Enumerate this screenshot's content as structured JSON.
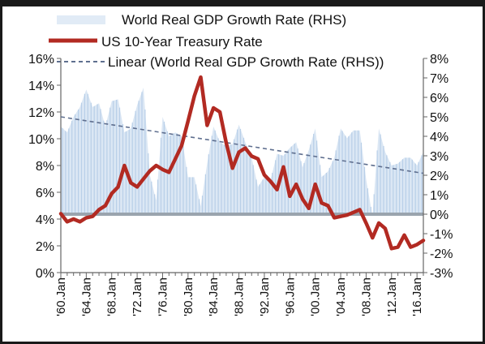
{
  "chart_data": {
    "type": "line",
    "legend": {
      "placement": "top",
      "entries": [
        {
          "key": "gdp",
          "label": "World Real GDP Growth Rate (RHS)",
          "style": "area",
          "color": "#cfe0f2"
        },
        {
          "key": "us10y",
          "label": "US 10-Year Treasury Rate",
          "style": "line",
          "color": "#b22a22"
        },
        {
          "key": "trend",
          "label": "Linear (World Real GDP Growth Rate (RHS))",
          "style": "dashed",
          "color": "#5f6f8f"
        }
      ]
    },
    "y_left": {
      "range": [
        0,
        16
      ],
      "ticks": [
        "0%",
        "2%",
        "4%",
        "6%",
        "8%",
        "10%",
        "12%",
        "14%",
        "16%"
      ]
    },
    "y_right": {
      "range": [
        -3,
        8
      ],
      "ticks": [
        "-3%",
        "-2%",
        "-1%",
        "0%",
        "1%",
        "2%",
        "3%",
        "4%",
        "5%",
        "6%",
        "7%",
        "8%"
      ]
    },
    "x_axis": {
      "range": [
        1960,
        2017
      ],
      "tick_labels": [
        "'60.Jan",
        "'64.Jan",
        "'68.Jan",
        "'72.Jan",
        "'76.Jan",
        "'80.Jan",
        "'84.Jan",
        "'88.Jan",
        "'92.Jan",
        "'96.Jan",
        "'00.Jan",
        "'04.Jan",
        "'08.Jan",
        "'12.Jan",
        "'16.Jan"
      ],
      "tick_years": [
        1960,
        1964,
        1968,
        1972,
        1976,
        1980,
        1984,
        1988,
        1992,
        1996,
        2000,
        2004,
        2008,
        2012,
        2016
      ]
    },
    "series": [
      {
        "name": "US 10-Year Treasury Rate",
        "axis": "left",
        "color": "#b22a22",
        "x": [
          1960,
          1961,
          1962,
          1963,
          1964,
          1965,
          1966,
          1967,
          1968,
          1969,
          1970,
          1971,
          1972,
          1973,
          1974,
          1975,
          1976,
          1977,
          1978,
          1979,
          1980,
          1981,
          1982,
          1983,
          1984,
          1985,
          1986,
          1987,
          1988,
          1989,
          1990,
          1991,
          1992,
          1993,
          1994,
          1995,
          1996,
          1997,
          1998,
          1999,
          2000,
          2001,
          2002,
          2003,
          2004,
          2005,
          2006,
          2007,
          2008,
          2009,
          2010,
          2011,
          2012,
          2013,
          2014,
          2015,
          2016,
          2017
        ],
        "y": [
          4.4,
          3.8,
          4.0,
          3.8,
          4.1,
          4.2,
          4.7,
          5.0,
          5.9,
          6.4,
          8.0,
          6.7,
          6.4,
          7.0,
          7.6,
          8.0,
          7.7,
          7.5,
          8.5,
          9.5,
          11.3,
          13.2,
          14.6,
          11.0,
          12.3,
          12.0,
          9.7,
          7.8,
          9.0,
          9.3,
          8.7,
          8.5,
          7.3,
          6.8,
          6.2,
          7.9,
          5.7,
          6.6,
          5.5,
          4.8,
          6.6,
          5.2,
          5.0,
          4.1,
          4.2,
          4.3,
          4.5,
          4.7,
          3.7,
          2.6,
          3.7,
          3.3,
          1.8,
          1.9,
          2.8,
          1.9,
          2.1,
          2.4
        ]
      },
      {
        "name": "World Real GDP Growth Rate (RHS)",
        "axis": "right",
        "color": "#cfe0f2",
        "x": [
          1960,
          1961,
          1962,
          1963,
          1964,
          1965,
          1966,
          1967,
          1968,
          1969,
          1970,
          1971,
          1972,
          1973,
          1974,
          1975,
          1976,
          1977,
          1978,
          1979,
          1980,
          1981,
          1982,
          1983,
          1984,
          1985,
          1986,
          1987,
          1988,
          1989,
          1990,
          1991,
          1992,
          1993,
          1994,
          1995,
          1996,
          1997,
          1998,
          1999,
          2000,
          2001,
          2002,
          2003,
          2004,
          2005,
          2006,
          2007,
          2008,
          2009,
          2010,
          2011,
          2012,
          2013,
          2014,
          2015,
          2016,
          2017
        ],
        "y": [
          4.5,
          4.2,
          5.0,
          5.5,
          6.4,
          5.5,
          5.7,
          4.5,
          5.8,
          5.9,
          4.2,
          4.4,
          5.6,
          6.5,
          2.0,
          0.7,
          5.0,
          4.0,
          4.2,
          4.0,
          1.9,
          1.9,
          0.4,
          2.6,
          4.5,
          3.7,
          3.5,
          3.6,
          4.6,
          3.7,
          2.9,
          1.4,
          1.9,
          1.8,
          3.1,
          3.0,
          3.4,
          3.7,
          2.4,
          3.3,
          4.4,
          1.9,
          2.2,
          2.9,
          4.4,
          3.9,
          4.3,
          4.3,
          1.8,
          -0.1,
          4.4,
          3.2,
          2.5,
          2.6,
          2.9,
          2.9,
          2.5,
          3.2
        ]
      },
      {
        "name": "Linear (World Real GDP Growth Rate (RHS))",
        "axis": "right",
        "style": "dashed",
        "color": "#5f6f8f",
        "x": [
          1960,
          2017
        ],
        "y": [
          5.0,
          2.1
        ]
      }
    ]
  }
}
